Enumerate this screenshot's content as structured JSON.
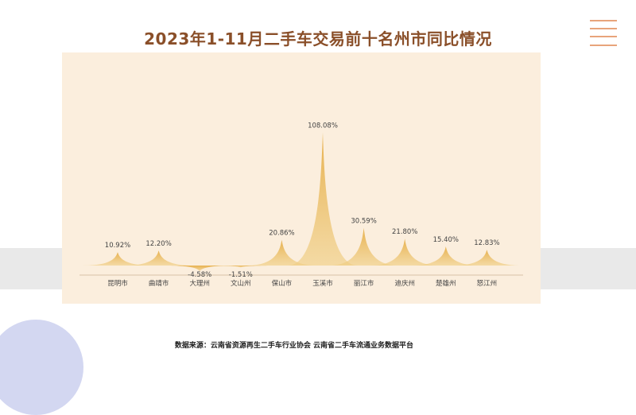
{
  "slide": {
    "title": "2023年1-11月二手车交易前十名州市同比情况",
    "source": "数据来源：云南省资源再生二手车行业协会   云南省二手车流通业务数据平台"
  },
  "colors": {
    "peak": "#e9b84f",
    "panel": "#fbeedd",
    "title": "#8a4f29",
    "accent_lines": "#e8a47b",
    "band": "#e9e9e9",
    "circle": "#d3d7f1"
  },
  "chart_data": {
    "type": "area",
    "title": "2023年1-11月二手车交易前十名州市同比情况",
    "xlabel": "",
    "ylabel": "",
    "ylim": [
      -5,
      110
    ],
    "grid": false,
    "categories": [
      "昆明市",
      "曲靖市",
      "大理州",
      "文山州",
      "保山市",
      "玉溪市",
      "丽江市",
      "迪庆州",
      "楚雄州",
      "怒江州"
    ],
    "values": [
      10.92,
      12.2,
      -4.58,
      -1.51,
      20.86,
      108.08,
      30.59,
      21.8,
      15.4,
      12.83
    ],
    "value_labels": [
      "10.92%",
      "12.20%",
      "-4.58%",
      "-1.51%",
      "20.86%",
      "108.08%",
      "30.59%",
      "21.80%",
      "15.40%",
      "12.83%"
    ]
  }
}
